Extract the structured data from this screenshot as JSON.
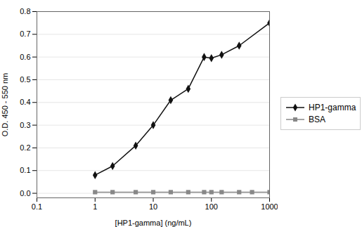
{
  "chart_data": {
    "type": "line",
    "xlabel": "[HP1-gamma] (ng/mL)",
    "ylabel": "O.D. 450 - 550 nm",
    "log": "x",
    "xlim": [
      0.1,
      1000
    ],
    "xticks": [
      0.1,
      1,
      10,
      100,
      1000
    ],
    "ylim": [
      -0.02,
      0.8
    ],
    "yticks": [
      {
        "value": 0.0,
        "label": "0.0"
      },
      0.1,
      0.2,
      0.3,
      0.4,
      0.5,
      0.6,
      0.7,
      0.8
    ],
    "grid": "y",
    "legend": "right",
    "series": [
      {
        "name": "HP1-gamma",
        "color": "#111111",
        "marker": "diamond",
        "x": [
          1,
          2,
          5,
          10,
          20,
          40,
          75,
          100,
          150,
          300,
          1000
        ],
        "values": [
          0.08,
          0.12,
          0.21,
          0.3,
          0.41,
          0.46,
          0.6,
          0.595,
          0.61,
          0.65,
          0.75
        ]
      },
      {
        "name": "BSA",
        "color": "#888888",
        "marker": "square",
        "x": [
          1,
          2,
          5,
          10,
          20,
          40,
          75,
          100,
          150,
          300,
          500,
          1000
        ],
        "values": [
          0.005,
          0.005,
          0.005,
          0.005,
          0.005,
          0.005,
          0.005,
          0.005,
          0.005,
          0.005,
          0.005,
          0.005
        ]
      }
    ]
  }
}
